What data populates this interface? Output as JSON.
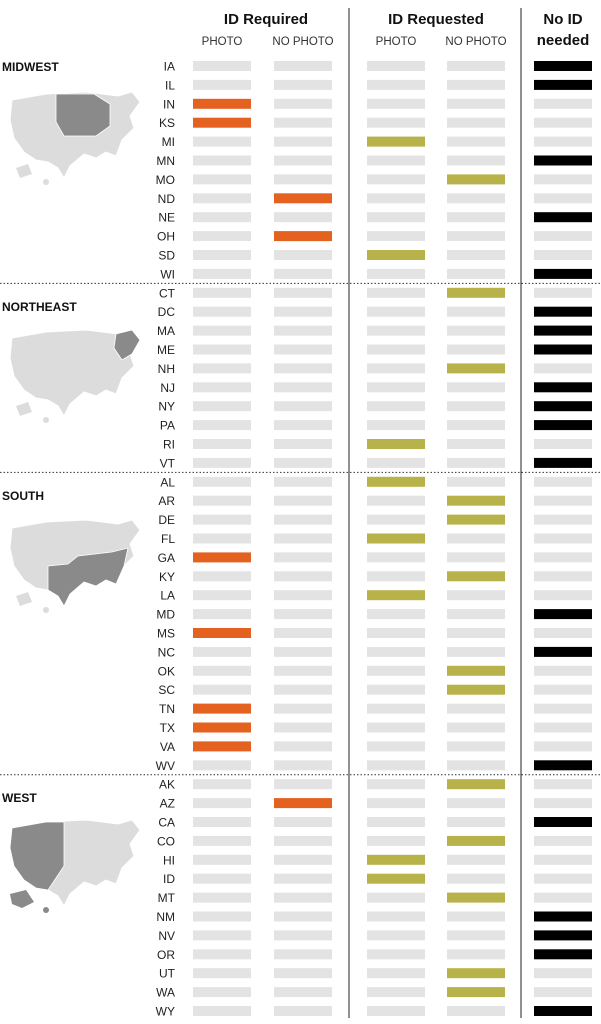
{
  "colors": {
    "empty": "#e3e3e3",
    "photo_required": "#e5611f",
    "nophoto_required": "#e5611f",
    "requested": "#b7b24a",
    "no_id": "#000000",
    "map_base": "#dcdcdc",
    "map_highlight": "#8a8a8a"
  },
  "headers": {
    "id_required": "ID Required",
    "id_requested": "ID Requested",
    "no_id_line1": "No ID",
    "no_id_line2": "needed",
    "photo": "PHOTO",
    "no_photo": "NO PHOTO",
    "photo_2": "PHOTO",
    "no_photo_2": "NO PHOTO"
  },
  "chart_data": {
    "type": "table",
    "columns": [
      "required_photo",
      "required_no_photo",
      "requested_photo",
      "requested_no_photo",
      "no_id"
    ],
    "regions": [
      {
        "name": "MIDWEST",
        "states": [
          {
            "code": "IA",
            "category": "no_id"
          },
          {
            "code": "IL",
            "category": "no_id"
          },
          {
            "code": "IN",
            "category": "required_photo"
          },
          {
            "code": "KS",
            "category": "required_photo"
          },
          {
            "code": "MI",
            "category": "requested_photo"
          },
          {
            "code": "MN",
            "category": "no_id"
          },
          {
            "code": "MO",
            "category": "requested_no_photo"
          },
          {
            "code": "ND",
            "category": "required_no_photo"
          },
          {
            "code": "NE",
            "category": "no_id"
          },
          {
            "code": "OH",
            "category": "required_no_photo"
          },
          {
            "code": "SD",
            "category": "requested_photo"
          },
          {
            "code": "WI",
            "category": "no_id"
          }
        ]
      },
      {
        "name": "NORTHEAST",
        "states": [
          {
            "code": "CT",
            "category": "requested_no_photo"
          },
          {
            "code": "DC",
            "category": "no_id"
          },
          {
            "code": "MA",
            "category": "no_id"
          },
          {
            "code": "ME",
            "category": "no_id"
          },
          {
            "code": "NH",
            "category": "requested_no_photo"
          },
          {
            "code": "NJ",
            "category": "no_id"
          },
          {
            "code": "NY",
            "category": "no_id"
          },
          {
            "code": "PA",
            "category": "no_id"
          },
          {
            "code": "RI",
            "category": "requested_photo"
          },
          {
            "code": "VT",
            "category": "no_id"
          }
        ]
      },
      {
        "name": "SOUTH",
        "states": [
          {
            "code": "AL",
            "category": "requested_photo"
          },
          {
            "code": "AR",
            "category": "requested_no_photo"
          },
          {
            "code": "DE",
            "category": "requested_no_photo"
          },
          {
            "code": "FL",
            "category": "requested_photo"
          },
          {
            "code": "GA",
            "category": "required_photo"
          },
          {
            "code": "KY",
            "category": "requested_no_photo"
          },
          {
            "code": "LA",
            "category": "requested_photo"
          },
          {
            "code": "MD",
            "category": "no_id"
          },
          {
            "code": "MS",
            "category": "required_photo"
          },
          {
            "code": "NC",
            "category": "no_id"
          },
          {
            "code": "OK",
            "category": "requested_no_photo"
          },
          {
            "code": "SC",
            "category": "requested_no_photo"
          },
          {
            "code": "TN",
            "category": "required_photo"
          },
          {
            "code": "TX",
            "category": "required_photo"
          },
          {
            "code": "VA",
            "category": "required_photo"
          },
          {
            "code": "WV",
            "category": "no_id"
          }
        ]
      },
      {
        "name": "WEST",
        "states": [
          {
            "code": "AK",
            "category": "requested_no_photo"
          },
          {
            "code": "AZ",
            "category": "required_no_photo"
          },
          {
            "code": "CA",
            "category": "no_id"
          },
          {
            "code": "CO",
            "category": "requested_no_photo"
          },
          {
            "code": "HI",
            "category": "requested_photo"
          },
          {
            "code": "ID",
            "category": "requested_photo"
          },
          {
            "code": "MT",
            "category": "requested_no_photo"
          },
          {
            "code": "NM",
            "category": "no_id"
          },
          {
            "code": "NV",
            "category": "no_id"
          },
          {
            "code": "OR",
            "category": "no_id"
          },
          {
            "code": "UT",
            "category": "requested_no_photo"
          },
          {
            "code": "WA",
            "category": "requested_no_photo"
          },
          {
            "code": "WY",
            "category": "no_id"
          }
        ]
      }
    ]
  }
}
